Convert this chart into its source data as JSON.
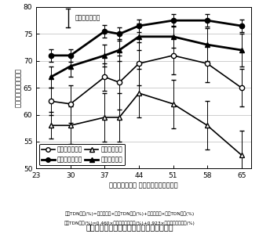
{
  "x": [
    26,
    30,
    37,
    40,
    44,
    51,
    58,
    65
  ],
  "yumechikara_stems": [
    62.5,
    62.0,
    67.0,
    66.0,
    69.5,
    71.0,
    69.5,
    65.0
  ],
  "yumechikara_whole": [
    71.0,
    71.0,
    75.5,
    75.0,
    76.5,
    77.5,
    77.5,
    76.5
  ],
  "cecilia_stems": [
    58.0,
    58.0,
    59.5,
    59.5,
    64.0,
    62.0,
    58.0,
    52.5
  ],
  "cecilia_whole": [
    67.0,
    69.0,
    71.0,
    72.0,
    74.5,
    74.5,
    73.0,
    72.0
  ],
  "yumechikara_stems_err": [
    2.5,
    3.5,
    2.5,
    5.0,
    4.0,
    3.5,
    3.5,
    3.5
  ],
  "yumechikara_whole_err": [
    1.2,
    1.2,
    1.2,
    1.2,
    1.2,
    1.2,
    1.2,
    1.2
  ],
  "cecilia_stems_err": [
    2.5,
    3.5,
    4.5,
    4.5,
    4.5,
    4.5,
    4.5,
    4.5
  ],
  "cecilia_whole_err": [
    2.0,
    2.0,
    2.0,
    2.0,
    2.5,
    2.0,
    3.0,
    3.0
  ],
  "lsd_bar_height": 3.5,
  "lsd_x": 29.5,
  "lsd_y_center": 78.0,
  "lsd_label": "５％最小有意差",
  "xlim": [
    23,
    67
  ],
  "ylim": [
    50,
    80
  ],
  "yticks": [
    50,
    55,
    60,
    65,
    70,
    75,
    80
  ],
  "xticks": [
    23,
    30,
    37,
    44,
    51,
    58,
    65
  ],
  "xlabel": "「ゆめちから」 絹糸抽出後日数（日）",
  "ylabel": "推定ＴＤＮ含量（％）",
  "title": "図２　収穫日による推定ＴＤＮ含量の変化",
  "footnote1": "推定TDN含量(%)=乾茎葉割合×茎葉TDN含量(%)+乾雌穂割合×雌穂TDN含量(%)",
  "footnote2": "雌穂TDN含量(%)=0.460×雌穂中乾穂芯割合(%)+0.923×雌穂中乾子実割合(%)",
  "legend_labels": [
    "ゆめちから茎葉",
    "ゆめちから全体",
    "セシリア茎葉",
    "セシリア全体"
  ],
  "bg_color": "#ffffff",
  "line_color": "#000000"
}
